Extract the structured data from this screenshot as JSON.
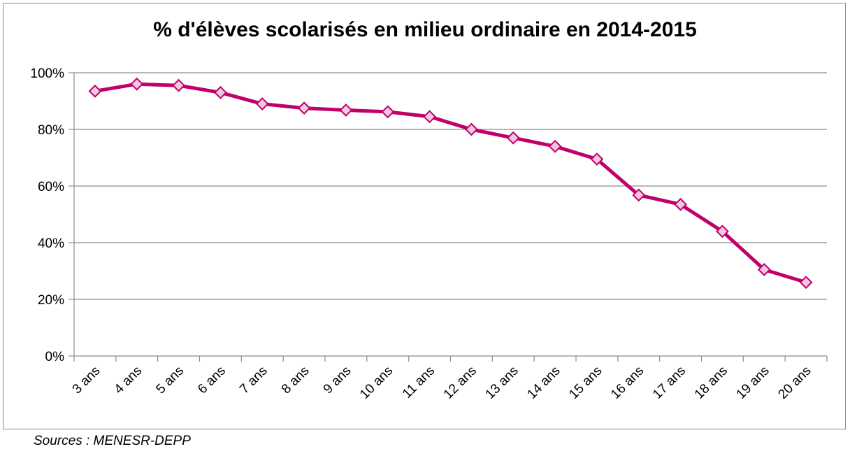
{
  "chart_data": {
    "type": "line",
    "title": "% d'élèves scolarisés en milieu ordinaire en 2014-2015",
    "categories": [
      "3 ans",
      "4 ans",
      "5 ans",
      "6 ans",
      "7 ans",
      "8 ans",
      "9 ans",
      "10 ans",
      "11 ans",
      "12 ans",
      "13 ans",
      "14 ans",
      "15 ans",
      "16 ans",
      "17 ans",
      "18 ans",
      "19 ans",
      "20 ans"
    ],
    "series": [
      {
        "values": [
          93.5,
          96,
          95.5,
          93,
          89,
          87.5,
          86.8,
          86.2,
          84.5,
          80,
          77,
          74,
          69.5,
          56.8,
          53.5,
          44,
          30.5,
          26
        ]
      }
    ],
    "y_ticks": [
      "0%",
      "20%",
      "40%",
      "60%",
      "80%",
      "100%"
    ],
    "ylim": [
      0,
      100
    ],
    "grid": true,
    "legend": "none",
    "line_color": "#c0006b",
    "marker_fill": "#f2c7e2",
    "marker": "diamond"
  },
  "source": "Sources : MENESR-DEPP"
}
